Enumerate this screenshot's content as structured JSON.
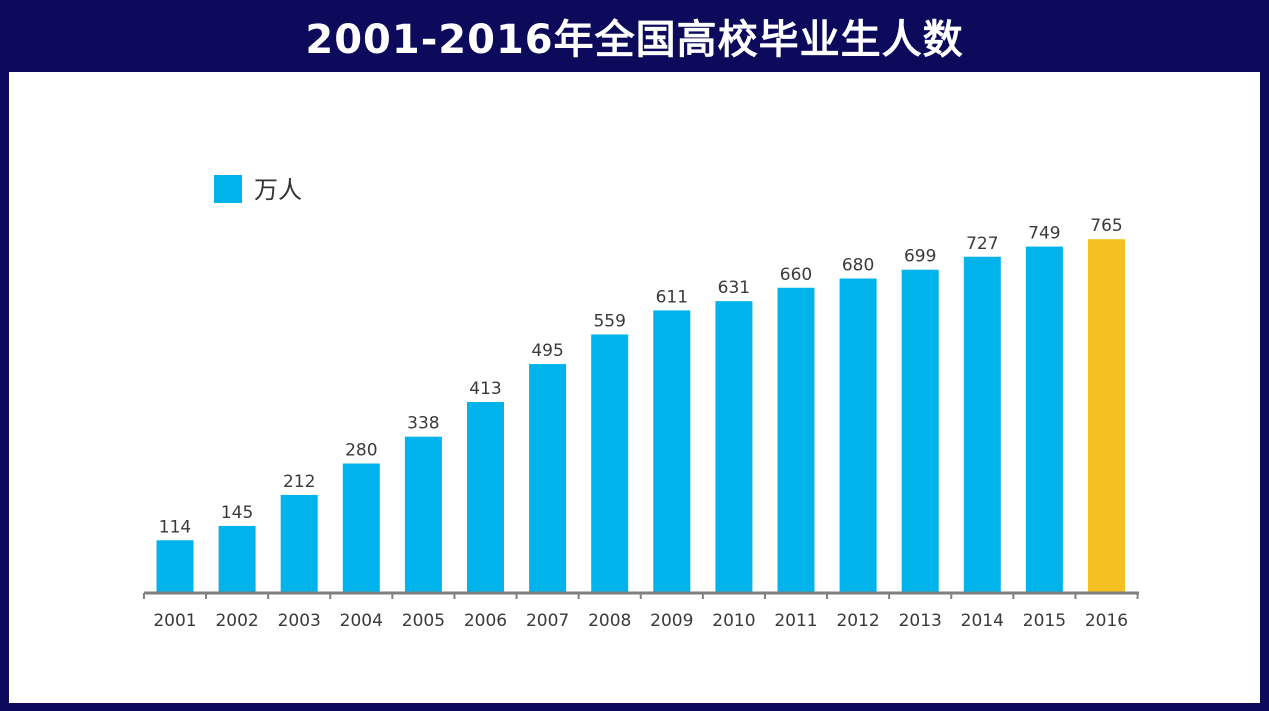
{
  "title": "2001-2016年全国高校毕业生人数",
  "colors": {
    "background": "#0d0a5c",
    "panel": "#ffffff",
    "bar": "#00b4eb",
    "highlight": "#f5c022",
    "axis": "#808080"
  },
  "chart_data": {
    "type": "bar",
    "title": "2001-2016年全国高校毕业生人数",
    "categories": [
      "2001",
      "2002",
      "2003",
      "2004",
      "2005",
      "2006",
      "2007",
      "2008",
      "2009",
      "2010",
      "2011",
      "2012",
      "2013",
      "2014",
      "2015",
      "2016"
    ],
    "series": [
      {
        "name": "万人",
        "values": [
          114,
          145,
          212,
          280,
          338,
          413,
          495,
          559,
          611,
          631,
          660,
          680,
          699,
          727,
          749,
          765
        ]
      }
    ],
    "highlight_category": "2016",
    "xlabel": "",
    "ylabel": "",
    "ylim": [
      0,
      800
    ],
    "grid": false,
    "legend_position": "top-left",
    "data_labels": true
  }
}
